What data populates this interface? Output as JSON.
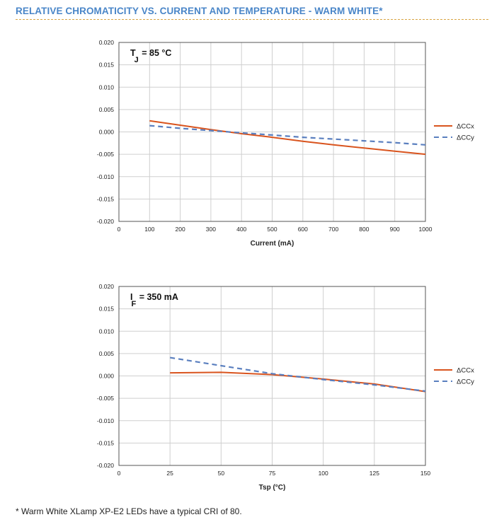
{
  "header": {
    "title": "RELATIVE CHROMATICITY VS. CURRENT AND TEMPERATURE - WARM WHITE*"
  },
  "footnote": "* Warm White XLamp XP-E2 LEDs have a typical CRI of 80.",
  "colors": {
    "ccx": "#d9541e",
    "ccy": "#5a7fbf",
    "grid": "#cfcfcf",
    "title": "#4a86c8"
  },
  "chart_data": [
    {
      "type": "line",
      "annotation": {
        "main": "T",
        "sub": "J",
        "rest": " = 85 °C"
      },
      "xlabel": "Current (mA)",
      "ylabel": "",
      "xlim": [
        0,
        1000
      ],
      "ylim": [
        -0.02,
        0.02
      ],
      "xticks": [
        "0",
        "100",
        "200",
        "300",
        "400",
        "500",
        "600",
        "700",
        "800",
        "900",
        "1000"
      ],
      "yticks": [
        "0.020",
        "0.015",
        "0.010",
        "0.005",
        "0.000",
        "-0.005",
        "-0.010",
        "-0.015",
        "-0.020"
      ],
      "grid": true,
      "legend": "right",
      "series": [
        {
          "name": "ΔCCx",
          "style": "solid",
          "x": [
            100,
            200,
            300,
            400,
            500,
            600,
            700,
            800,
            900,
            1000
          ],
          "y": [
            0.0025,
            0.0015,
            0.0005,
            -0.0004,
            -0.0012,
            -0.0021,
            -0.0029,
            -0.0036,
            -0.0043,
            -0.005
          ]
        },
        {
          "name": "ΔCCy",
          "style": "dashed",
          "x": [
            100,
            200,
            300,
            400,
            500,
            600,
            700,
            800,
            900,
            1000
          ],
          "y": [
            0.0014,
            0.0008,
            0.0003,
            -0.0002,
            -0.0007,
            -0.0012,
            -0.0016,
            -0.002,
            -0.0024,
            -0.0029
          ]
        }
      ]
    },
    {
      "type": "line",
      "annotation": {
        "main": "I",
        "sub": "F",
        "rest": " = 350 mA"
      },
      "xlabel": "Tsp (°C)",
      "ylabel": "",
      "xlim": [
        0,
        150
      ],
      "ylim": [
        -0.02,
        0.02
      ],
      "xticks": [
        "0",
        "25",
        "50",
        "75",
        "100",
        "125",
        "150"
      ],
      "yticks": [
        "0.020",
        "0.015",
        "0.010",
        "0.005",
        "0.000",
        "-0.005",
        "-0.010",
        "-0.015",
        "-0.020"
      ],
      "grid": true,
      "legend": "right",
      "series": [
        {
          "name": "ΔCCx",
          "style": "solid",
          "x": [
            25,
            50,
            75,
            100,
            125,
            150
          ],
          "y": [
            0.0007,
            0.0008,
            0.0003,
            -0.0007,
            -0.0018,
            -0.0035
          ]
        },
        {
          "name": "ΔCCy",
          "style": "dashed",
          "x": [
            25,
            50,
            75,
            100,
            125,
            150
          ],
          "y": [
            0.0041,
            0.0023,
            0.0005,
            -0.0008,
            -0.002,
            -0.0034
          ]
        }
      ]
    }
  ]
}
